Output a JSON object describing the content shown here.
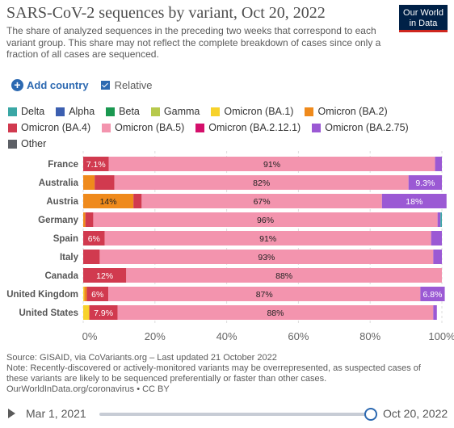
{
  "title": "SARS-CoV-2 sequences by variant, Oct 20, 2022",
  "subtitle": "The share of analyzed sequences in the preceding two weeks that correspond to each variant group. This share may not reflect the complete breakdown of cases since only a fraction of all cases are sequenced.",
  "logo": {
    "line1": "Our World",
    "line2": "in Data"
  },
  "controls": {
    "add_country": "Add country",
    "relative": "Relative"
  },
  "legend": [
    {
      "name": "Delta",
      "color": "#3aa7a5"
    },
    {
      "name": "Alpha",
      "color": "#3c5fb0"
    },
    {
      "name": "Beta",
      "color": "#1a9850"
    },
    {
      "name": "Gamma",
      "color": "#b7c94c"
    },
    {
      "name": "Omicron (BA.1)",
      "color": "#f7d22b"
    },
    {
      "name": "Omicron (BA.2)",
      "color": "#ef8a1c"
    },
    {
      "name": "Omicron (BA.4)",
      "color": "#d13a4f"
    },
    {
      "name": "Omicron (BA.5)",
      "color": "#f394ae"
    },
    {
      "name": "Omicron (BA.2.12.1)",
      "color": "#d40f6b"
    },
    {
      "name": "Omicron (BA.2.75)",
      "color": "#9b59d4"
    },
    {
      "name": "Other",
      "color": "#5d6066"
    }
  ],
  "chart_data": {
    "type": "bar",
    "orientation": "horizontal",
    "stacked": true,
    "categories": [
      "France",
      "Australia",
      "Austria",
      "Germany",
      "Spain",
      "Italy",
      "Canada",
      "United Kingdom",
      "United States"
    ],
    "series": [
      {
        "name": "Omicron (BA.1)",
        "values": [
          0,
          0,
          0,
          0,
          0,
          0,
          0,
          0.3,
          1.7
        ]
      },
      {
        "name": "Omicron (BA.2)",
        "values": [
          0,
          3.2,
          14,
          0.6,
          0,
          0,
          0,
          0.7,
          0
        ]
      },
      {
        "name": "Omicron (BA.4)",
        "values": [
          7.1,
          5.5,
          2.3,
          2.2,
          6,
          4.6,
          12,
          6,
          7.9
        ]
      },
      {
        "name": "Omicron (BA.5)",
        "values": [
          91,
          82,
          67,
          96,
          91,
          93,
          88,
          87,
          88
        ]
      },
      {
        "name": "Omicron (BA.2.75)",
        "values": [
          1.9,
          9.3,
          18,
          0.8,
          3,
          2.4,
          0,
          6.8,
          1
        ]
      },
      {
        "name": "Delta",
        "values": [
          0,
          0,
          0,
          0.4,
          0,
          0,
          0,
          0,
          0
        ]
      }
    ],
    "labels": [
      [
        "",
        "",
        "7.1%",
        "91%",
        "",
        ""
      ],
      [
        "",
        "",
        "",
        "82%",
        "9.3%",
        ""
      ],
      [
        "",
        "14%",
        "",
        "67%",
        "18%",
        ""
      ],
      [
        "",
        "",
        "",
        "96%",
        "",
        ""
      ],
      [
        "",
        "",
        "6%",
        "91%",
        "",
        ""
      ],
      [
        "",
        "",
        "",
        "93%",
        "",
        ""
      ],
      [
        "",
        "",
        "12%",
        "88%",
        "",
        ""
      ],
      [
        "",
        "",
        "6%",
        "87%",
        "6.8%",
        ""
      ],
      [
        "",
        "",
        "7.9%",
        "88%",
        "",
        ""
      ]
    ],
    "xlim": [
      0,
      100
    ],
    "xticks": [
      "0%",
      "20%",
      "40%",
      "60%",
      "80%",
      "100%"
    ]
  },
  "source": {
    "line1": "Source: GISAID, via CoVariants.org – Last updated 21 October 2022",
    "line2": "Note: Recently-discovered or actively-monitored variants may be overrepresented, as suspected cases of these variants are likely to be sequenced preferentially or faster than other cases.",
    "line3": "OurWorldInData.org/coronavirus • CC BY"
  },
  "timeline": {
    "start": "Mar 1, 2021",
    "end": "Oct 20, 2022"
  }
}
